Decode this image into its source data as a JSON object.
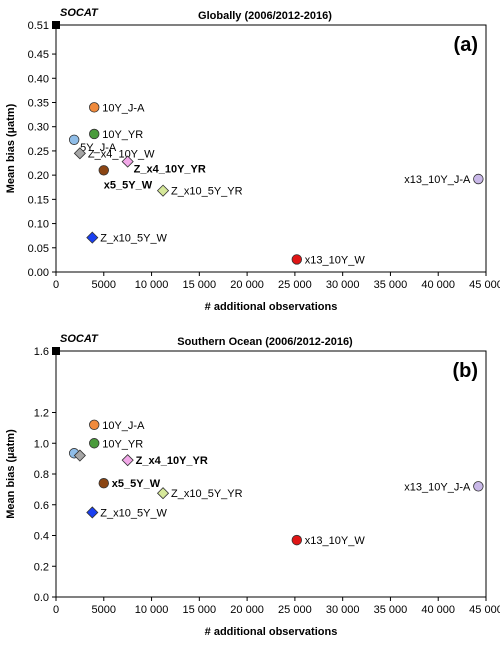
{
  "chart_data": [
    {
      "type": "scatter",
      "panel_label": "(a)",
      "title": "Globally (2006/2012-2016)",
      "xlabel": "# additional observations",
      "ylabel": "Mean bias (µatm)",
      "xlim": [
        0,
        45000
      ],
      "ylim": [
        0,
        0.51
      ],
      "xticks": [
        0,
        5000,
        10000,
        15000,
        20000,
        25000,
        30000,
        35000,
        40000,
        45000
      ],
      "xtick_labels": [
        "0",
        "5000",
        "10 000",
        "15 000",
        "20 000",
        "25 000",
        "30 000",
        "35 000",
        "40 000",
        "45 000"
      ],
      "yticks": [
        0,
        0.05,
        0.1,
        0.15,
        0.2,
        0.25,
        0.3,
        0.35,
        0.4,
        0.45,
        0.51
      ],
      "ytick_labels": [
        "0.00",
        "0.05",
        "0.10",
        "0.15",
        "0.20",
        "0.25",
        "0.30",
        "0.35",
        "0.40",
        "0.45",
        "0.51"
      ],
      "grid": false,
      "reference": {
        "label": "SOCAT",
        "x": 0,
        "y": 0.51
      },
      "points": [
        {
          "label": "10Y_J-A",
          "x": 4000,
          "y": 0.34,
          "marker": "circle",
          "color": "#f08a3c",
          "bold": false,
          "label_side": "right"
        },
        {
          "label": "10Y_YR",
          "x": 4000,
          "y": 0.285,
          "marker": "circle",
          "color": "#4a9b3c",
          "bold": false,
          "label_side": "right"
        },
        {
          "label": "5Y_J-A",
          "x": 1900,
          "y": 0.273,
          "marker": "circle",
          "color": "#8fbde8",
          "bold": false,
          "label_side": "right-below"
        },
        {
          "label": "Z_x4_10Y_W",
          "x": 2500,
          "y": 0.245,
          "marker": "diamond",
          "color": "#a6a6a6",
          "bold": false,
          "label_side": "right"
        },
        {
          "label": "Z_x4_10Y_YR",
          "x": 7500,
          "y": 0.228,
          "marker": "diamond",
          "color": "#f2a8e8",
          "bold": true,
          "label_side": "right-below"
        },
        {
          "label": "x5_5Y_W",
          "x": 5000,
          "y": 0.21,
          "marker": "circle",
          "color": "#8b4513",
          "bold": true,
          "label_side": "below"
        },
        {
          "label": "Z_x10_5Y_YR",
          "x": 11200,
          "y": 0.168,
          "marker": "diamond",
          "color": "#d6e89a",
          "bold": false,
          "label_side": "right"
        },
        {
          "label": "x13_10Y_J-A",
          "x": 44200,
          "y": 0.192,
          "marker": "circle",
          "color": "#c9b8e8",
          "bold": false,
          "label_side": "left"
        },
        {
          "label": "Z_x10_5Y_W",
          "x": 3800,
          "y": 0.071,
          "marker": "diamond",
          "color": "#1a3ff0",
          "bold": false,
          "label_side": "right"
        },
        {
          "label": "x13_10Y_W",
          "x": 25200,
          "y": 0.026,
          "marker": "circle",
          "color": "#e01515",
          "bold": false,
          "label_side": "right"
        }
      ]
    },
    {
      "type": "scatter",
      "panel_label": "(b)",
      "title": "Southern Ocean (2006/2012-2016)",
      "xlabel": "# additional observations",
      "ylabel": "Mean bias (µatm)",
      "xlim": [
        0,
        45000
      ],
      "ylim": [
        0,
        1.6
      ],
      "xticks": [
        0,
        5000,
        10000,
        15000,
        20000,
        25000,
        30000,
        35000,
        40000,
        45000
      ],
      "xtick_labels": [
        "0",
        "5000",
        "10 000",
        "15 000",
        "20 000",
        "25 000",
        "30 000",
        "35 000",
        "40 000",
        "45 000"
      ],
      "yticks": [
        0,
        0.2,
        0.4,
        0.6,
        0.8,
        1.0,
        1.2,
        1.6
      ],
      "ytick_labels": [
        "0.0",
        "0.2",
        "0.4",
        "0.6",
        "0.8",
        "1.0",
        "1.2",
        "1.6"
      ],
      "grid": false,
      "reference": {
        "label": "SOCAT",
        "x": 0,
        "y": 1.6
      },
      "points": [
        {
          "label": "10Y_J-A",
          "x": 4000,
          "y": 1.12,
          "marker": "circle",
          "color": "#f08a3c",
          "bold": false,
          "label_side": "right"
        },
        {
          "label": "10Y_YR",
          "x": 4000,
          "y": 1.0,
          "marker": "circle",
          "color": "#4a9b3c",
          "bold": false,
          "label_side": "right"
        },
        {
          "label": "",
          "x": 1900,
          "y": 0.935,
          "marker": "circle",
          "color": "#8fbde8",
          "bold": false,
          "label_side": "none"
        },
        {
          "label": "",
          "x": 2500,
          "y": 0.92,
          "marker": "diamond",
          "color": "#a6a6a6",
          "bold": false,
          "label_side": "none"
        },
        {
          "label": "Z_x4_10Y_YR",
          "x": 7500,
          "y": 0.89,
          "marker": "diamond",
          "color": "#f2a8e8",
          "bold": true,
          "label_side": "right"
        },
        {
          "label": "x5_5Y_W",
          "x": 5000,
          "y": 0.74,
          "marker": "circle",
          "color": "#8b4513",
          "bold": true,
          "label_side": "right"
        },
        {
          "label": "Z_x10_5Y_YR",
          "x": 11200,
          "y": 0.675,
          "marker": "diamond",
          "color": "#d6e89a",
          "bold": false,
          "label_side": "right"
        },
        {
          "label": "x13_10Y_J-A",
          "x": 44200,
          "y": 0.72,
          "marker": "circle",
          "color": "#c9b8e8",
          "bold": false,
          "label_side": "left"
        },
        {
          "label": "Z_x10_5Y_W",
          "x": 3800,
          "y": 0.55,
          "marker": "diamond",
          "color": "#1a3ff0",
          "bold": false,
          "label_side": "right"
        },
        {
          "label": "x13_10Y_W",
          "x": 25200,
          "y": 0.37,
          "marker": "circle",
          "color": "#e01515",
          "bold": false,
          "label_side": "right"
        }
      ]
    }
  ]
}
